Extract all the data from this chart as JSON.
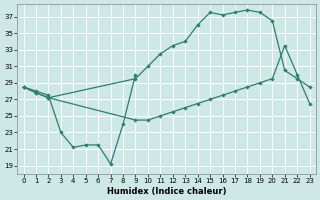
{
  "xlabel": "Humidex (Indice chaleur)",
  "bg_color": "#cde8e5",
  "line_color": "#2e7d72",
  "grid_color": "#ffffff",
  "xlim": [
    -0.5,
    23.5
  ],
  "ylim": [
    18.0,
    38.5
  ],
  "yticks": [
    19,
    21,
    23,
    25,
    27,
    29,
    31,
    33,
    35,
    37
  ],
  "xticks": [
    0,
    1,
    2,
    3,
    4,
    5,
    6,
    7,
    8,
    9,
    10,
    11,
    12,
    13,
    14,
    15,
    16,
    17,
    18,
    19,
    20,
    21,
    22,
    23
  ],
  "s1_x": [
    0,
    1,
    2,
    3,
    4,
    5,
    6,
    7,
    8,
    9
  ],
  "s1_y": [
    28.5,
    28.0,
    27.5,
    23.0,
    21.2,
    21.5,
    21.5,
    19.2,
    24.0,
    30.0
  ],
  "s2_x": [
    0,
    1,
    2,
    9,
    10,
    11,
    12,
    13,
    14,
    15,
    16,
    17,
    18,
    19,
    20,
    21,
    22,
    23
  ],
  "s2_y": [
    28.5,
    27.8,
    27.2,
    24.5,
    24.5,
    25.0,
    25.5,
    26.0,
    26.5,
    27.0,
    27.5,
    28.0,
    28.5,
    29.0,
    29.5,
    33.5,
    30.0,
    26.5
  ],
  "s3_x": [
    0,
    1,
    2,
    9,
    10,
    11,
    12,
    13,
    14,
    15,
    16,
    17,
    18,
    19,
    20,
    21,
    22,
    23
  ],
  "s3_y": [
    28.5,
    27.8,
    27.2,
    29.5,
    31.0,
    32.5,
    33.5,
    34.0,
    36.0,
    37.5,
    37.2,
    37.5,
    37.8,
    37.5,
    36.5,
    30.5,
    29.5,
    28.5
  ]
}
